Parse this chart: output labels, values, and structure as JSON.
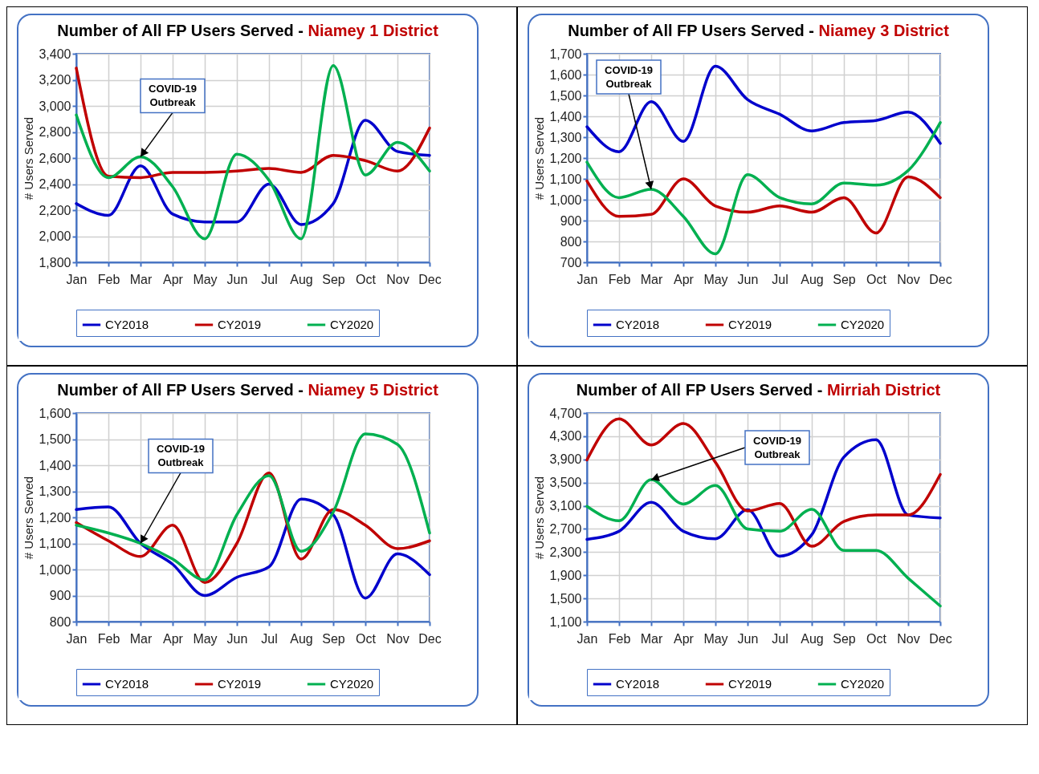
{
  "chart_data": [
    {
      "type": "line",
      "title": "Number of All FP Users Served -",
      "subtitle": "Niamey 1 District",
      "ylabel": "# Users Served",
      "categories": [
        "Jan",
        "Feb",
        "Mar",
        "Apr",
        "May",
        "Jun",
        "Jul",
        "Aug",
        "Sep",
        "Oct",
        "Nov",
        "Dec"
      ],
      "series": [
        {
          "name": "CY2018",
          "color": "#0000cc",
          "values": [
            2250,
            2160,
            2540,
            2170,
            2110,
            2110,
            2400,
            2090,
            2250,
            2890,
            2650,
            2620
          ]
        },
        {
          "name": "CY2019",
          "color": "#c00000",
          "values": [
            3290,
            2460,
            2450,
            2490,
            2490,
            2500,
            2520,
            2490,
            2620,
            2580,
            2500,
            2830
          ]
        },
        {
          "name": "CY2020",
          "color": "#00b050",
          "values": [
            2930,
            2450,
            2610,
            2380,
            1980,
            2630,
            2430,
            1980,
            3310,
            2470,
            2720,
            2500
          ]
        }
      ],
      "ylim": [
        1800,
        3400
      ],
      "yticks": [
        {
          "value": 1800,
          "label": "1,800"
        },
        {
          "value": 2000,
          "label": "2,000"
        },
        {
          "value": 2200,
          "label": "2,200"
        },
        {
          "value": 2400,
          "label": "2,400"
        },
        {
          "value": 2600,
          "label": "2,600"
        },
        {
          "value": 2800,
          "label": "2,800"
        },
        {
          "value": 3000,
          "label": "3,000"
        },
        {
          "value": 3200,
          "label": "3,200"
        },
        {
          "value": 3400,
          "label": "3,400"
        }
      ],
      "annotations": [
        {
          "text": "COVID-19 Outbreak",
          "x": "Mar",
          "y": 2610
        }
      ],
      "grid": true,
      "legend": "bottom",
      "marker": "none",
      "line_style": "solid"
    },
    {
      "type": "line",
      "title": "Number of All FP Users Served -",
      "subtitle": "Niamey 3 District",
      "ylabel": "# Users Served",
      "categories": [
        "Jan",
        "Feb",
        "Mar",
        "Apr",
        "May",
        "Jun",
        "Jul",
        "Aug",
        "Sep",
        "Oct",
        "Nov",
        "Dec"
      ],
      "series": [
        {
          "name": "CY2018",
          "color": "#0000cc",
          "values": [
            1350,
            1230,
            1470,
            1280,
            1640,
            1480,
            1410,
            1330,
            1370,
            1380,
            1420,
            1270
          ]
        },
        {
          "name": "CY2019",
          "color": "#c00000",
          "values": [
            1090,
            920,
            930,
            1100,
            970,
            940,
            970,
            940,
            1010,
            840,
            1110,
            1010
          ]
        },
        {
          "name": "CY2020",
          "color": "#00b050",
          "values": [
            1180,
            1010,
            1050,
            920,
            740,
            1120,
            1010,
            980,
            1080,
            1070,
            1140,
            1370
          ]
        }
      ],
      "ylim": [
        700,
        1700
      ],
      "yticks": [
        700,
        800,
        900,
        {
          "value": 1000,
          "label": "1,000"
        },
        {
          "value": 1100,
          "label": "1,100"
        },
        {
          "value": 1200,
          "label": "1,200"
        },
        {
          "value": 1300,
          "label": "1,300"
        },
        {
          "value": 1400,
          "label": "1,400"
        },
        {
          "value": 1500,
          "label": "1,500"
        },
        {
          "value": 1600,
          "label": "1,600"
        },
        {
          "value": 1700,
          "label": "1,700"
        }
      ],
      "annotations": [
        {
          "text": "COVID-19 Outbreak",
          "x": "Mar",
          "y": 1050
        }
      ],
      "grid": true,
      "legend": "bottom",
      "marker": "none",
      "line_style": "solid"
    },
    {
      "type": "line",
      "title": "Number of All FP Users Served -",
      "subtitle": "Niamey 5 District",
      "ylabel": "# Users Served",
      "categories": [
        "Jan",
        "Feb",
        "Mar",
        "Apr",
        "May",
        "Jun",
        "Jul",
        "Aug",
        "Sep",
        "Oct",
        "Nov",
        "Dec"
      ],
      "series": [
        {
          "name": "CY2018",
          "color": "#0000cc",
          "values": [
            1230,
            1240,
            1100,
            1020,
            900,
            970,
            1010,
            1270,
            1210,
            890,
            1060,
            980
          ]
        },
        {
          "name": "CY2019",
          "color": "#c00000",
          "values": [
            1180,
            1110,
            1050,
            1170,
            950,
            1100,
            1370,
            1040,
            1230,
            1170,
            1080,
            1110
          ]
        },
        {
          "name": "CY2020",
          "color": "#00b050",
          "values": [
            1170,
            1140,
            1100,
            1040,
            960,
            1210,
            1360,
            1070,
            1220,
            1520,
            1480,
            1140
          ]
        }
      ],
      "ylim": [
        800,
        1600
      ],
      "yticks": [
        800,
        900,
        {
          "value": 1000,
          "label": "1,000"
        },
        {
          "value": 1100,
          "label": "1,100"
        },
        {
          "value": 1200,
          "label": "1,200"
        },
        {
          "value": 1300,
          "label": "1,300"
        },
        {
          "value": 1400,
          "label": "1,400"
        },
        {
          "value": 1500,
          "label": "1,500"
        },
        {
          "value": 1600,
          "label": "1,600"
        }
      ],
      "annotations": [
        {
          "text": "COVID-19 Outbreak",
          "x": "Mar",
          "y": 1100
        }
      ],
      "grid": true,
      "legend": "bottom",
      "marker": "none",
      "line_style": "solid"
    },
    {
      "type": "line",
      "title": "Number of All FP Users Served -",
      "subtitle": "Mirriah District",
      "ylabel": "# Users Served",
      "categories": [
        "Jan",
        "Feb",
        "Mar",
        "Apr",
        "May",
        "Jun",
        "Jul",
        "Aug",
        "Sep",
        "Oct",
        "Nov",
        "Dec"
      ],
      "series": [
        {
          "name": "CY2018",
          "color": "#0000cc",
          "values": [
            2520,
            2660,
            3160,
            2660,
            2530,
            3030,
            2230,
            2600,
            3940,
            4240,
            2940,
            2890
          ]
        },
        {
          "name": "CY2019",
          "color": "#c00000",
          "values": [
            3890,
            4600,
            4150,
            4520,
            3850,
            3010,
            3140,
            2400,
            2830,
            2940,
            2940,
            3640
          ]
        },
        {
          "name": "CY2020",
          "color": "#00b050",
          "values": [
            3090,
            2840,
            3550,
            3130,
            3450,
            2700,
            2660,
            3040,
            2330,
            2330,
            1850,
            1370
          ]
        }
      ],
      "ylim": [
        1100,
        4700
      ],
      "yticks": [
        {
          "value": 1100,
          "label": "1,100"
        },
        {
          "value": 1500,
          "label": "1,500"
        },
        {
          "value": 1900,
          "label": "1,900"
        },
        {
          "value": 2300,
          "label": "2,300"
        },
        {
          "value": 2700,
          "label": "2,700"
        },
        {
          "value": 3100,
          "label": "3,100"
        },
        {
          "value": 3500,
          "label": "3,500"
        },
        {
          "value": 3900,
          "label": "3,900"
        },
        {
          "value": 4300,
          "label": "4,300"
        },
        {
          "value": 4700,
          "label": "4,700"
        }
      ],
      "annotations": [
        {
          "text": "COVID-19 Outbreak",
          "x": "Mar",
          "y": 3550
        }
      ],
      "grid": true,
      "legend": "bottom",
      "marker": "none",
      "line_style": "solid"
    }
  ]
}
